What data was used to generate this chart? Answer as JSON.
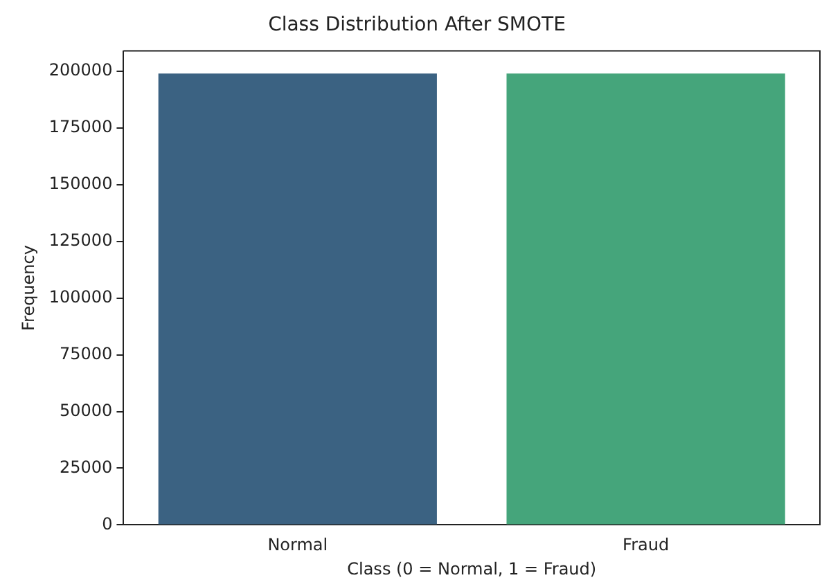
{
  "chart_data": {
    "type": "bar",
    "title": "Class Distribution After SMOTE",
    "xlabel": "Class (0 = Normal, 1 = Fraud)",
    "ylabel": "Frequency",
    "categories": [
      "Normal",
      "Fraud"
    ],
    "values": [
      199000,
      199000
    ],
    "colors": [
      "#3b6282",
      "#45a57b"
    ],
    "ylim": [
      0,
      209000
    ],
    "yticks": [
      0,
      25000,
      50000,
      75000,
      100000,
      125000,
      150000,
      175000,
      200000
    ],
    "grid": false,
    "legend": false
  }
}
